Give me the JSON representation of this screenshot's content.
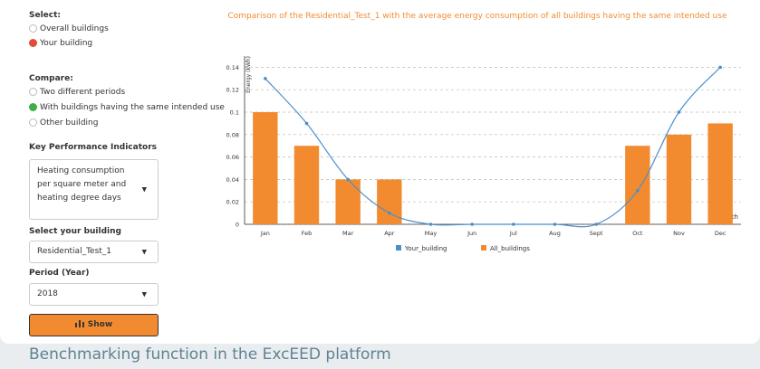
{
  "sidebar": {
    "select": {
      "label": "Select:",
      "options": [
        "Overall buildings",
        "Your building"
      ],
      "selected": 1
    },
    "compare": {
      "label": "Compare:",
      "options": [
        "Two different periods",
        "With buildings having the same intended use",
        "Other building"
      ],
      "selected": 1
    },
    "kpi": {
      "label": "Key Performance Indicators",
      "value": "Heating consumption per square meter and heating degree days"
    },
    "building": {
      "label": "Select your building",
      "value": "Residential_Test_1"
    },
    "period": {
      "label": "Period (Year)",
      "value": "2018"
    },
    "button": "Show"
  },
  "chart_data": {
    "type": "bar",
    "title": "Comparison of the Residential_Test_1 with the average energy consumption of all buildings having the same intended use",
    "y_label": "Energy (kWh)",
    "x_label": "Month",
    "categories": [
      "Jan",
      "Feb",
      "Mar",
      "Apr",
      "May",
      "Jun",
      "Jul",
      "Aug",
      "Sept",
      "Oct",
      "Nov",
      "Dec"
    ],
    "series": [
      {
        "name": "Your_building",
        "type": "line",
        "color": "#4a8fcb",
        "values": [
          0.13,
          0.09,
          0.04,
          0.01,
          0,
          0,
          0,
          0,
          0,
          0.03,
          0.1,
          0.14
        ]
      },
      {
        "name": "All_buildings",
        "type": "bar",
        "color": "#f28b30",
        "values": [
          0.1,
          0.07,
          0.04,
          0.04,
          0,
          0,
          0,
          0,
          0,
          0.07,
          0.08,
          0.09
        ]
      }
    ],
    "ylim": [
      0,
      0.15
    ],
    "yticks": [
      0,
      0.02,
      0.04,
      0.06,
      0.08,
      0.1,
      0.12,
      0.14
    ],
    "grid": true
  },
  "caption": "Benchmarking function in the ExcEED platform"
}
